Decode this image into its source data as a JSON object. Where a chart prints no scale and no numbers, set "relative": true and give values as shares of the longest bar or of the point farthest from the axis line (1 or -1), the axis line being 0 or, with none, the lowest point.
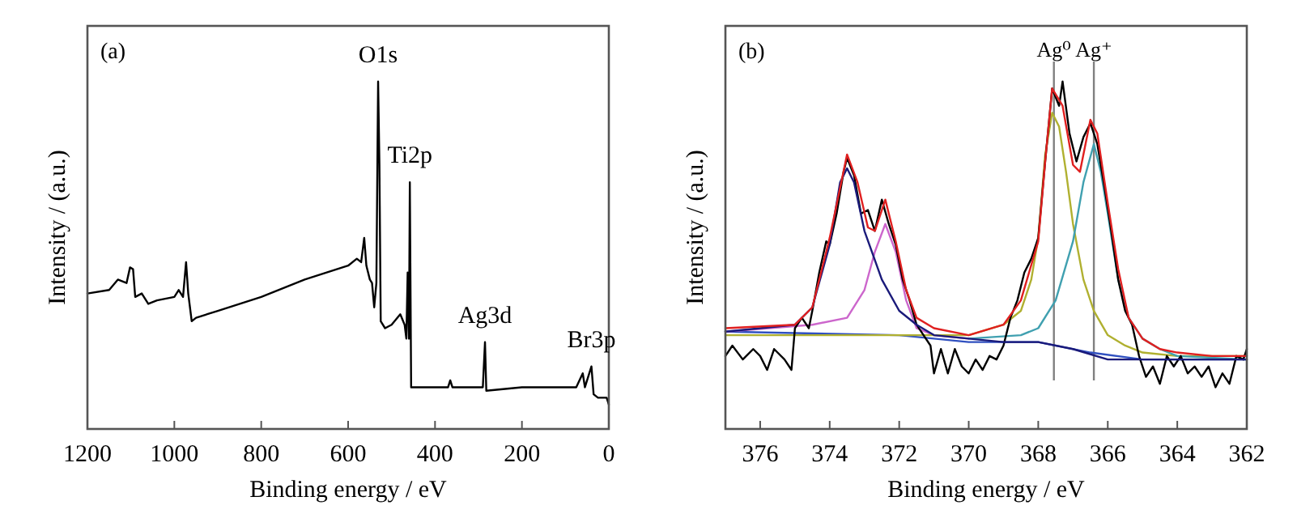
{
  "chart_data": [
    {
      "type": "line",
      "xlabel": "Binding energy / eV",
      "ylabel": "Intensity / (a.u.)",
      "relative": true,
      "xlim": [
        1200,
        0
      ],
      "xticks": [
        1200,
        1000,
        800,
        600,
        400,
        200,
        0
      ],
      "annotations": [
        "(a)",
        {
          "text": "O1s",
          "x": 531,
          "y": 1.0
        },
        {
          "text": "Ti2p",
          "x": 458,
          "y": 0.71
        },
        {
          "text": "Ag3d",
          "x": 285,
          "y": 0.25
        },
        {
          "text": "Br3p",
          "x": 40,
          "y": 0.18
        }
      ],
      "series": [
        {
          "color": "#000000",
          "x": [
            1200,
            1150,
            1130,
            1110,
            1102,
            1095,
            1090,
            1075,
            1060,
            1040,
            1000,
            990,
            980,
            973,
            968,
            960,
            950,
            900,
            800,
            700,
            600,
            580,
            570,
            563,
            558,
            550,
            545,
            540,
            535,
            531,
            528,
            525,
            515,
            500,
            480,
            470,
            466,
            463,
            460,
            458,
            455,
            400,
            370,
            365,
            360,
            300,
            290,
            285,
            282,
            200,
            100,
            75,
            60,
            55,
            40,
            35,
            25,
            15,
            5,
            0
          ],
          "values": [
            0.39,
            0.4,
            0.43,
            0.42,
            0.465,
            0.46,
            0.38,
            0.39,
            0.36,
            0.37,
            0.38,
            0.4,
            0.38,
            0.48,
            0.39,
            0.31,
            0.32,
            0.34,
            0.38,
            0.43,
            0.47,
            0.49,
            0.48,
            0.55,
            0.47,
            0.43,
            0.42,
            0.35,
            0.42,
            1.0,
            0.76,
            0.31,
            0.29,
            0.3,
            0.33,
            0.3,
            0.26,
            0.45,
            0.26,
            0.71,
            0.12,
            0.12,
            0.12,
            0.14,
            0.12,
            0.12,
            0.12,
            0.25,
            0.11,
            0.12,
            0.12,
            0.12,
            0.16,
            0.12,
            0.18,
            0.1,
            0.09,
            0.09,
            0.09,
            0.07
          ]
        }
      ]
    },
    {
      "type": "line",
      "xlabel": "Binding energy / eV",
      "ylabel": "Intensity / (a.u.)",
      "relative": true,
      "xlim": [
        377,
        362
      ],
      "xticks": [
        376,
        374,
        372,
        370,
        368,
        366,
        364,
        362
      ],
      "annotations": [
        "(b)"
      ],
      "ref_lines": [
        {
          "axis": "x",
          "value": 367.55,
          "label": "Ag⁰",
          "color": "#808080"
        },
        {
          "axis": "x",
          "value": 366.4,
          "label": "Ag⁺",
          "color": "#808080"
        }
      ],
      "series": [
        {
          "color": "#3050c0",
          "x": [
            377,
            372,
            370,
            368,
            366.5,
            365,
            362
          ],
          "values": [
            0.28,
            0.27,
            0.25,
            0.25,
            0.22,
            0.2,
            0.2
          ]
        },
        {
          "color": "#cc66cc",
          "x": [
            377,
            374.5,
            373.5,
            373,
            372.7,
            372.4,
            372.1,
            371.8,
            371.5,
            371,
            370
          ],
          "values": [
            0.28,
            0.3,
            0.32,
            0.4,
            0.51,
            0.59,
            0.51,
            0.37,
            0.29,
            0.27,
            0.26
          ]
        },
        {
          "color": "#b0b030",
          "x": [
            377,
            372,
            370,
            369,
            368.5,
            368.2,
            368,
            367.8,
            367.6,
            367.4,
            367.2,
            367,
            366.7,
            366.4,
            366,
            365.5,
            365,
            364,
            362
          ],
          "values": [
            0.27,
            0.27,
            0.27,
            0.3,
            0.34,
            0.43,
            0.55,
            0.79,
            0.91,
            0.87,
            0.74,
            0.59,
            0.43,
            0.34,
            0.27,
            0.24,
            0.22,
            0.21,
            0.21
          ]
        },
        {
          "color": "#40a0b0",
          "x": [
            370,
            368.5,
            368,
            367.5,
            367,
            366.7,
            366.4,
            366.2,
            366,
            365.7,
            365.4,
            365,
            364.5,
            364,
            362
          ],
          "values": [
            0.26,
            0.27,
            0.29,
            0.37,
            0.54,
            0.71,
            0.82,
            0.74,
            0.62,
            0.43,
            0.32,
            0.26,
            0.23,
            0.21,
            0.2
          ]
        },
        {
          "color": "#000000",
          "x": [
            377,
            376.8,
            376.5,
            376.2,
            376,
            375.8,
            375.6,
            375.3,
            375.1,
            375,
            374.8,
            374.6,
            374.5,
            374.3,
            374.1,
            374,
            373.8,
            373.6,
            373.5,
            373.3,
            373.1,
            372.9,
            372.7,
            372.5,
            372.3,
            372.1,
            371.9,
            371.7,
            371.5,
            371.3,
            371.1,
            371,
            370.8,
            370.6,
            370.4,
            370.2,
            370,
            369.8,
            369.6,
            369.4,
            369.2,
            369,
            368.8,
            368.6,
            368.4,
            368.2,
            368,
            367.8,
            367.6,
            367.4,
            367.3,
            367.1,
            366.9,
            366.7,
            366.5,
            366.3,
            366.1,
            365.9,
            365.7,
            365.5,
            365.3,
            365.1,
            364.9,
            364.7,
            364.5,
            364.3,
            364.1,
            363.9,
            363.7,
            363.5,
            363.3,
            363.1,
            362.9,
            362.7,
            362.5,
            362.3,
            362.1,
            362
          ],
          "values": [
            0.21,
            0.24,
            0.2,
            0.23,
            0.21,
            0.17,
            0.23,
            0.2,
            0.17,
            0.29,
            0.32,
            0.29,
            0.34,
            0.45,
            0.54,
            0.53,
            0.62,
            0.74,
            0.78,
            0.73,
            0.62,
            0.63,
            0.57,
            0.66,
            0.59,
            0.53,
            0.43,
            0.37,
            0.3,
            0.27,
            0.24,
            0.16,
            0.23,
            0.16,
            0.23,
            0.18,
            0.16,
            0.2,
            0.17,
            0.21,
            0.2,
            0.24,
            0.32,
            0.37,
            0.45,
            0.49,
            0.55,
            0.77,
            0.98,
            0.93,
            1.0,
            0.85,
            0.77,
            0.84,
            0.88,
            0.82,
            0.7,
            0.57,
            0.43,
            0.34,
            0.3,
            0.21,
            0.15,
            0.18,
            0.13,
            0.21,
            0.18,
            0.21,
            0.16,
            0.18,
            0.15,
            0.18,
            0.12,
            0.16,
            0.13,
            0.21,
            0.2,
            0.23
          ]
        },
        {
          "color": "#1a1a7a",
          "x": [
            377,
            375,
            374.5,
            374,
            373.7,
            373.5,
            373.3,
            373,
            372.5,
            372,
            371.5,
            371,
            370,
            369,
            368,
            367,
            366,
            365,
            362
          ],
          "values": [
            0.28,
            0.3,
            0.35,
            0.53,
            0.71,
            0.75,
            0.71,
            0.57,
            0.43,
            0.34,
            0.3,
            0.27,
            0.26,
            0.25,
            0.25,
            0.23,
            0.2,
            0.2,
            0.2
          ]
        },
        {
          "color": "#e02020",
          "x": [
            377,
            375,
            374.5,
            374,
            373.5,
            373.2,
            372.9,
            372.7,
            372.4,
            372.1,
            371.8,
            371.5,
            371,
            370,
            369,
            368.5,
            368,
            367.8,
            367.6,
            367.3,
            367,
            366.8,
            366.5,
            366.3,
            366,
            365.7,
            365.4,
            365,
            364.5,
            364,
            363,
            362
          ],
          "values": [
            0.29,
            0.3,
            0.35,
            0.55,
            0.79,
            0.71,
            0.58,
            0.57,
            0.66,
            0.54,
            0.4,
            0.32,
            0.29,
            0.27,
            0.3,
            0.37,
            0.54,
            0.77,
            0.98,
            0.93,
            0.76,
            0.74,
            0.89,
            0.85,
            0.65,
            0.46,
            0.32,
            0.26,
            0.23,
            0.22,
            0.21,
            0.21
          ]
        }
      ]
    }
  ]
}
